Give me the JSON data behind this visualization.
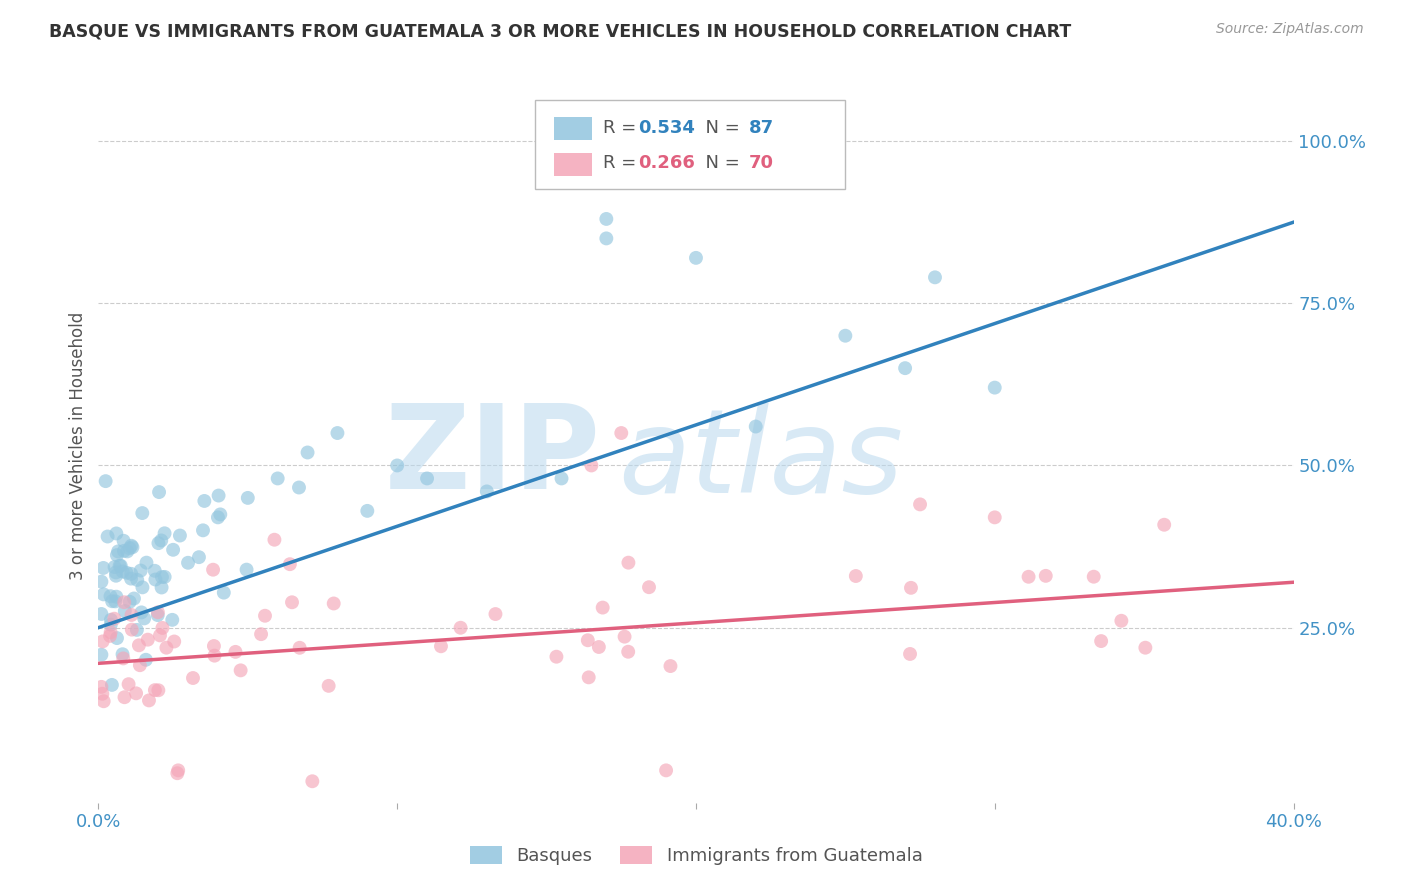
{
  "title": "BASQUE VS IMMIGRANTS FROM GUATEMALA 3 OR MORE VEHICLES IN HOUSEHOLD CORRELATION CHART",
  "source": "Source: ZipAtlas.com",
  "ylabel": "3 or more Vehicles in Household",
  "xlim": [
    0.0,
    0.4
  ],
  "ylim": [
    -0.02,
    1.08
  ],
  "blue_R": 0.534,
  "blue_N": 87,
  "pink_R": 0.266,
  "pink_N": 70,
  "blue_color": "#92c5de",
  "blue_line_color": "#3182bd",
  "pink_color": "#f4a6b8",
  "pink_line_color": "#e0607e",
  "blue_label": "Basques",
  "pink_label": "Immigrants from Guatemala",
  "watermark_zip": "ZIP",
  "watermark_atlas": "atlas",
  "watermark_color": "#d0e8f5",
  "background_color": "#ffffff",
  "grid_color": "#cccccc",
  "title_color": "#333333",
  "tick_color": "#4292c6",
  "source_color": "#999999",
  "blue_line_x": [
    0.0,
    0.4
  ],
  "blue_line_y": [
    0.25,
    0.875
  ],
  "pink_line_x": [
    0.0,
    0.4
  ],
  "pink_line_y": [
    0.195,
    0.32
  ],
  "figsize": [
    14.06,
    8.92
  ],
  "dpi": 100,
  "legend_R_color": "#3182bd",
  "legend_pink_R_color": "#e0607e",
  "legend_text_color": "#555555"
}
